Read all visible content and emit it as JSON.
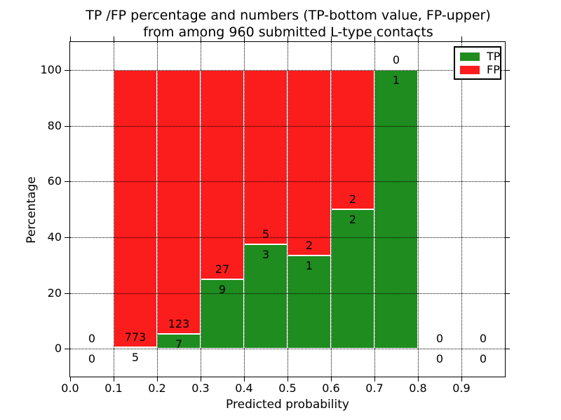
{
  "chart_data": {
    "type": "bar",
    "subtype": "stacked-percentage-histogram",
    "title_line1": "TP /FP percentage and numbers (TP-bottom value, FP-upper)",
    "title_line2": "from among 960 submitted L-type contacts",
    "xlabel": "Predicted probability",
    "ylabel": "Percentage",
    "xlim": [
      0.0,
      1.0
    ],
    "ylim": [
      -10,
      110
    ],
    "x_ticks": [
      "0.0",
      "0.1",
      "0.2",
      "0.3",
      "0.4",
      "0.5",
      "0.6",
      "0.7",
      "0.8",
      "0.9"
    ],
    "y_ticks": [
      "0",
      "20",
      "40",
      "60",
      "80",
      "100"
    ],
    "grid": "dotted black, both axes, drawn above bars",
    "total_contacts": 960,
    "tp_color": "#1e8c1e",
    "fp_color": "#fb1c1c",
    "bar_edge_color": "#ffffff",
    "legend": {
      "position": "upper-right",
      "items": [
        {
          "label": "TP",
          "color": "#1e8c1e"
        },
        {
          "label": "FP",
          "color": "#fb1c1c"
        }
      ]
    },
    "bins": [
      {
        "x0": 0.0,
        "x1": 0.1,
        "tp": 0,
        "fp": 0,
        "tp_pct": 0,
        "fp_pct": 0
      },
      {
        "x0": 0.1,
        "x1": 0.2,
        "tp": 5,
        "fp": 773,
        "tp_pct": 0.64,
        "fp_pct": 99.36
      },
      {
        "x0": 0.2,
        "x1": 0.3,
        "tp": 7,
        "fp": 123,
        "tp_pct": 5.38,
        "fp_pct": 94.62
      },
      {
        "x0": 0.3,
        "x1": 0.4,
        "tp": 9,
        "fp": 27,
        "tp_pct": 25.0,
        "fp_pct": 75.0
      },
      {
        "x0": 0.4,
        "x1": 0.5,
        "tp": 3,
        "fp": 5,
        "tp_pct": 37.5,
        "fp_pct": 62.5
      },
      {
        "x0": 0.5,
        "x1": 0.6,
        "tp": 1,
        "fp": 2,
        "tp_pct": 33.33,
        "fp_pct": 66.67
      },
      {
        "x0": 0.6,
        "x1": 0.7,
        "tp": 2,
        "fp": 2,
        "tp_pct": 50.0,
        "fp_pct": 50.0
      },
      {
        "x0": 0.7,
        "x1": 0.8,
        "tp": 1,
        "fp": 0,
        "tp_pct": 100.0,
        "fp_pct": 0.0
      },
      {
        "x0": 0.8,
        "x1": 0.9,
        "tp": 0,
        "fp": 0,
        "tp_pct": 0,
        "fp_pct": 0
      },
      {
        "x0": 0.9,
        "x1": 1.0,
        "tp": 0,
        "fp": 0,
        "tp_pct": 0,
        "fp_pct": 0
      }
    ]
  }
}
